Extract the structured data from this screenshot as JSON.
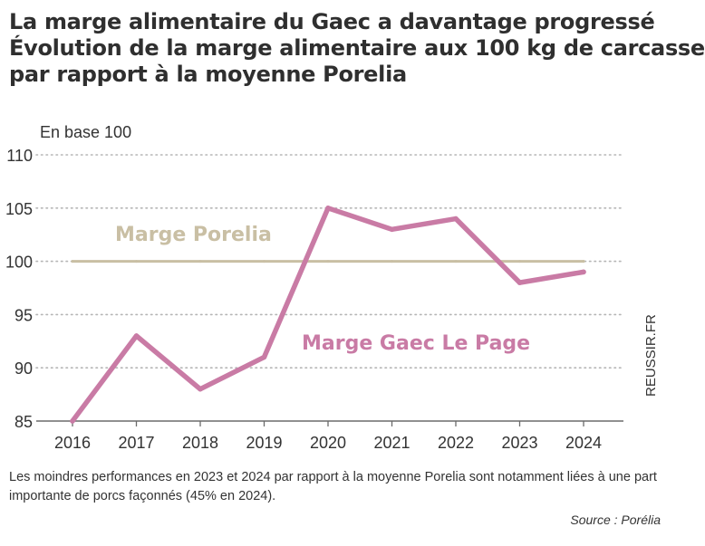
{
  "title": {
    "line1": "La marge alimentaire du Gaec a davantage progressé",
    "line2": "Évolution de la marge alimentaire aux 100 kg de carcasse",
    "line3": "par rapport à la moyenne Porelia"
  },
  "note": "Les moindres performances en 2023 et 2024 par rapport à la moyenne Porelia sont notamment liées à une part importante de porcs façonnés (45% en 2024).",
  "source": "Source : Porélia",
  "credit": "REUSSIR.FR",
  "colors": {
    "porelia": "#c9bfa4",
    "gaec": "#c97ba5",
    "grid": "#b5b5b5",
    "axis": "#6b6b6b"
  },
  "chart_data": {
    "type": "line",
    "ylabel": "En base 100",
    "xlabel": "",
    "ylim": [
      85,
      110
    ],
    "yticks": [
      85,
      90,
      95,
      100,
      105,
      110
    ],
    "grid": true,
    "categories": [
      "2016",
      "2017",
      "2018",
      "2019",
      "2020",
      "2021",
      "2022",
      "2023",
      "2024"
    ],
    "series": [
      {
        "name": "Marge Porelia",
        "values": [
          100,
          100,
          100,
          100,
          100,
          100,
          100,
          100,
          100
        ]
      },
      {
        "name": "Marge Gaec Le Page",
        "values": [
          85,
          93,
          88,
          91,
          105,
          103,
          104,
          98,
          99
        ]
      }
    ]
  }
}
